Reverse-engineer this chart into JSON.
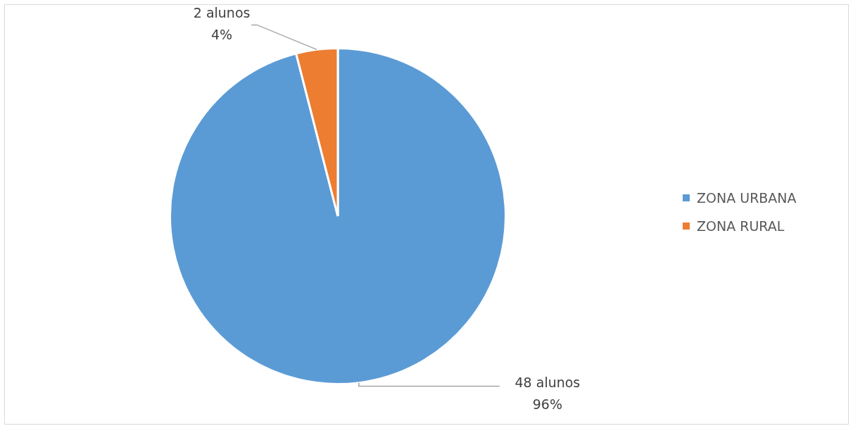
{
  "chart_data": {
    "type": "pie",
    "categories": [
      "ZONA URBANA",
      "ZONA RURAL"
    ],
    "values": [
      96,
      4
    ],
    "colors": [
      "#5b9bd5",
      "#ed7d31"
    ],
    "value_labels": [
      "48 alunos\n96%",
      "2 alunos\n4%"
    ],
    "legend": "right"
  }
}
